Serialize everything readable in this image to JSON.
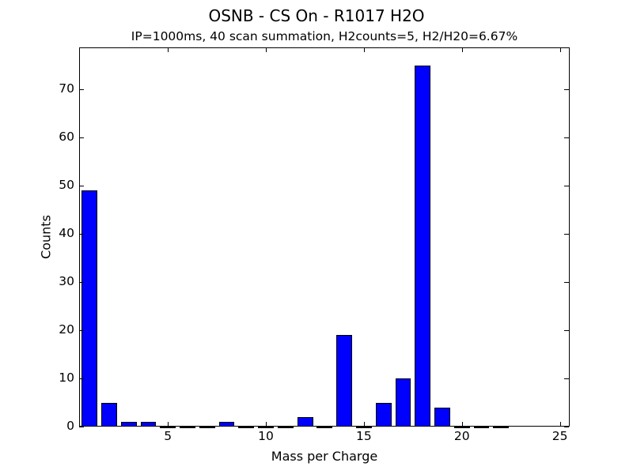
{
  "chart_data": {
    "type": "bar",
    "title": "OSNB - CS On - R1017 H2O",
    "subtitle": "IP=1000ms, 40 scan summation, H2counts=5, H2/H20=6.67%",
    "xlabel": "Mass per Charge",
    "ylabel": "Counts",
    "x": [
      1,
      2,
      3,
      4,
      5,
      6,
      7,
      8,
      9,
      10,
      11,
      12,
      13,
      14,
      15,
      16,
      17,
      18,
      19,
      20,
      21,
      22
    ],
    "values": [
      49,
      5,
      1,
      1,
      0,
      0,
      0,
      1,
      0,
      0,
      0,
      2,
      0,
      19,
      0,
      5,
      10,
      75,
      4,
      0,
      0,
      0
    ],
    "bar_width": 0.8,
    "bar_color": "#0000ff",
    "xlim": [
      0.47,
      25.5
    ],
    "ylim": [
      0,
      78.7
    ],
    "xticks": [
      5,
      10,
      15,
      20,
      25
    ],
    "yticks": [
      0,
      10,
      20,
      30,
      40,
      50,
      60,
      70
    ],
    "grid": false,
    "legend": null
  }
}
